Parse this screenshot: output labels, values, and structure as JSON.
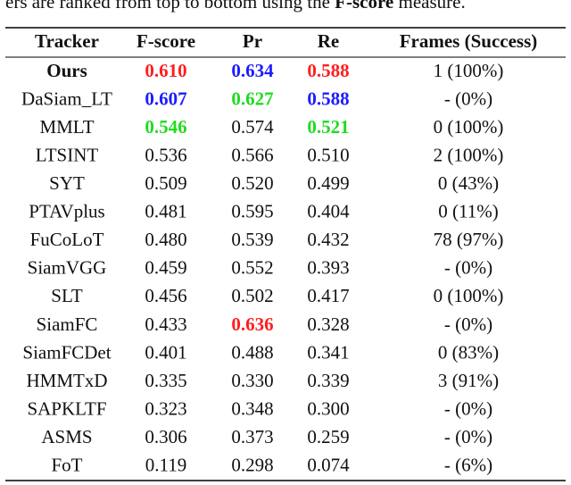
{
  "caption": [
    "ers are ranked from top to bottom using the ",
    "F-score",
    " measure."
  ],
  "table": {
    "header": [
      "Tracker",
      "F-score",
      "Pr",
      "Re",
      "Frames (Success)"
    ],
    "rows": [
      [
        "Ours",
        "0.610",
        "0.634",
        "0.588",
        "1 (100%)"
      ],
      [
        "DaSiam_LT",
        "0.607",
        "0.627",
        "0.588",
        "- (0%)"
      ],
      [
        "MMLT",
        "0.546",
        "0.574",
        "0.521",
        "0 (100%)"
      ],
      [
        "LTSINT",
        "0.536",
        "0.566",
        "0.510",
        "2 (100%)"
      ],
      [
        "SYT",
        "0.509",
        "0.520",
        "0.499",
        "0 (43%)"
      ],
      [
        "PTAVplus",
        "0.481",
        "0.595",
        "0.404",
        "0 (11%)"
      ],
      [
        "FuCoLoT",
        "0.480",
        "0.539",
        "0.432",
        "78 (97%)"
      ],
      [
        "SiamVGG",
        "0.459",
        "0.552",
        "0.393",
        "- (0%)"
      ],
      [
        "SLT",
        "0.456",
        "0.502",
        "0.417",
        "0 (100%)"
      ],
      [
        "SiamFC",
        "0.433",
        "0.636",
        "0.328",
        "- (0%)"
      ],
      [
        "SiamFCDet",
        "0.401",
        "0.488",
        "0.341",
        "0 (83%)"
      ],
      [
        "HMMTxD",
        "0.335",
        "0.330",
        "0.339",
        "3 (91%)"
      ],
      [
        "SAPKLTF",
        "0.323",
        "0.348",
        "0.300",
        "- (0%)"
      ],
      [
        "ASMS",
        "0.306",
        "0.373",
        "0.259",
        "- (0%)"
      ],
      [
        "FoT",
        "0.119",
        "0.298",
        "0.074",
        "- (6%)"
      ]
    ]
  }
}
